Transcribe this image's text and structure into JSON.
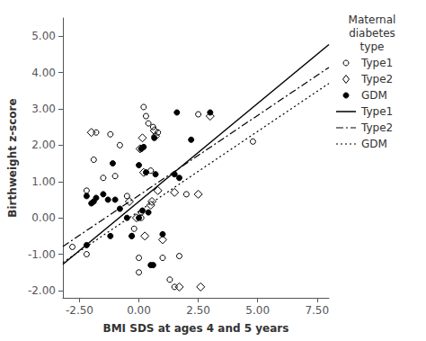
{
  "chart_data": {
    "type": "scatter",
    "xlabel": "BMI SDS at ages 4 and 5 years",
    "ylabel": "Birthweight z-score",
    "xlim": [
      -3.2,
      8.0
    ],
    "ylim": [
      -2.2,
      5.5
    ],
    "xticks": [
      {
        "value": -2.5,
        "label": "-2.50"
      },
      {
        "value": 0,
        "label": "0.00"
      },
      {
        "value": 2.5,
        "label": "2.50"
      },
      {
        "value": 5,
        "label": "5.00"
      },
      {
        "value": 7.5,
        "label": "7.50"
      }
    ],
    "yticks": [
      {
        "value": -2,
        "label": "-2.00"
      },
      {
        "value": -1,
        "label": "-1.00"
      },
      {
        "value": 0,
        "label": "0.00"
      },
      {
        "value": 1,
        "label": "1.00"
      },
      {
        "value": 2,
        "label": "2.00"
      },
      {
        "value": 3,
        "label": "3.00"
      },
      {
        "value": 4,
        "label": "4.00"
      },
      {
        "value": 5,
        "label": "5.00"
      }
    ],
    "grid": false,
    "legend": "right",
    "legend_title": "Maternal\ndiabetes\ntype",
    "series": [
      {
        "name": "Type1",
        "type": "scatter",
        "marker": "open_circle",
        "color": "#000000",
        "x": [
          -2.8,
          -2.2,
          -2.2,
          -1.9,
          -1.8,
          -1.5,
          -1.2,
          -1.0,
          -0.8,
          -0.5,
          -0.3,
          -0.2,
          0.0,
          0.0,
          0.1,
          0.1,
          0.2,
          0.3,
          0.4,
          0.5,
          0.6,
          0.8,
          1.0,
          1.3,
          1.5,
          1.7,
          2.0,
          2.5,
          4.8
        ],
        "values": [
          -0.8,
          -1.0,
          0.75,
          1.6,
          2.35,
          1.1,
          2.3,
          1.15,
          2.0,
          0.6,
          -0.5,
          -0.3,
          -1.1,
          -1.5,
          0.0,
          0.15,
          3.05,
          2.8,
          2.6,
          1.3,
          2.5,
          2.35,
          -1.1,
          -1.7,
          -1.9,
          -1.05,
          0.65,
          2.85,
          2.1
        ]
      },
      {
        "name": "Type2",
        "type": "scatter",
        "marker": "open_diamond",
        "color": "#000000",
        "x": [
          -2.0,
          -0.4,
          -0.1,
          0.05,
          0.15,
          0.2,
          0.25,
          0.5,
          0.55,
          0.65,
          0.7,
          0.8,
          1.0,
          1.5,
          1.7,
          2.5,
          2.6,
          3.0
        ],
        "values": [
          2.35,
          0.45,
          0.0,
          1.9,
          2.2,
          1.25,
          -0.5,
          0.35,
          0.45,
          2.4,
          2.25,
          0.75,
          -0.6,
          0.7,
          -1.9,
          0.65,
          -1.9,
          2.8
        ]
      },
      {
        "name": "GDM",
        "type": "scatter",
        "marker": "circle",
        "color": "#000000",
        "x": [
          -2.2,
          -2.2,
          -2.0,
          -1.9,
          -1.8,
          -1.5,
          -1.3,
          -1.2,
          -1.1,
          -1.0,
          -0.8,
          -0.5,
          -0.3,
          0.0,
          0.0,
          0.1,
          0.15,
          0.2,
          0.3,
          0.4,
          0.5,
          0.6,
          0.65,
          0.7,
          1.0,
          1.5,
          1.6,
          1.7,
          2.2,
          3.0
        ],
        "values": [
          -0.75,
          0.6,
          0.4,
          0.45,
          0.55,
          0.65,
          0.5,
          -0.5,
          1.5,
          0.5,
          0.25,
          0.0,
          -0.5,
          0.0,
          1.45,
          1.9,
          0.2,
          1.95,
          1.25,
          0.15,
          -1.3,
          -1.3,
          2.2,
          1.2,
          -0.45,
          1.2,
          2.9,
          1.1,
          2.15,
          2.9
        ]
      },
      {
        "name": "Type1",
        "type": "line",
        "line_style": "solid",
        "color": "#000000",
        "x": [
          -3.2,
          8.0
        ],
        "values": [
          -1.278,
          4.77
        ]
      },
      {
        "name": "Type2",
        "type": "line",
        "line_style": "dashdot",
        "color": "#000000",
        "x": [
          -3.2,
          8.0
        ],
        "values": [
          -0.788,
          4.14
        ]
      },
      {
        "name": "GDM",
        "type": "line",
        "line_style": "dotted",
        "color": "#000000",
        "x": [
          -3.2,
          8.0
        ],
        "values": [
          -1.228,
          3.7
        ]
      }
    ]
  }
}
